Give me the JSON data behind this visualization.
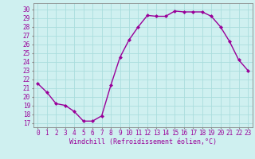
{
  "x": [
    0,
    1,
    2,
    3,
    4,
    5,
    6,
    7,
    8,
    9,
    10,
    11,
    12,
    13,
    14,
    15,
    16,
    17,
    18,
    19,
    20,
    21,
    22,
    23
  ],
  "y": [
    21.5,
    20.5,
    19.2,
    19.0,
    18.3,
    17.2,
    17.2,
    17.8,
    21.3,
    24.5,
    26.5,
    28.0,
    29.3,
    29.2,
    29.2,
    29.8,
    29.7,
    29.7,
    29.7,
    29.2,
    28.0,
    26.3,
    24.2,
    23.0
  ],
  "line_color": "#990099",
  "marker": "D",
  "marker_size": 2.0,
  "xlabel": "Windchill (Refroidissement éolien,°C)",
  "ylabel_ticks": [
    17,
    18,
    19,
    20,
    21,
    22,
    23,
    24,
    25,
    26,
    27,
    28,
    29,
    30
  ],
  "ylim": [
    16.5,
    30.7
  ],
  "xlim": [
    -0.5,
    23.5
  ],
  "bg_color": "#cff0f0",
  "grid_color": "#aadddd",
  "tick_label_color": "#990099",
  "xlabel_color": "#990099",
  "xlabel_fontsize": 6.0,
  "tick_fontsize": 5.5,
  "linewidth": 1.0
}
